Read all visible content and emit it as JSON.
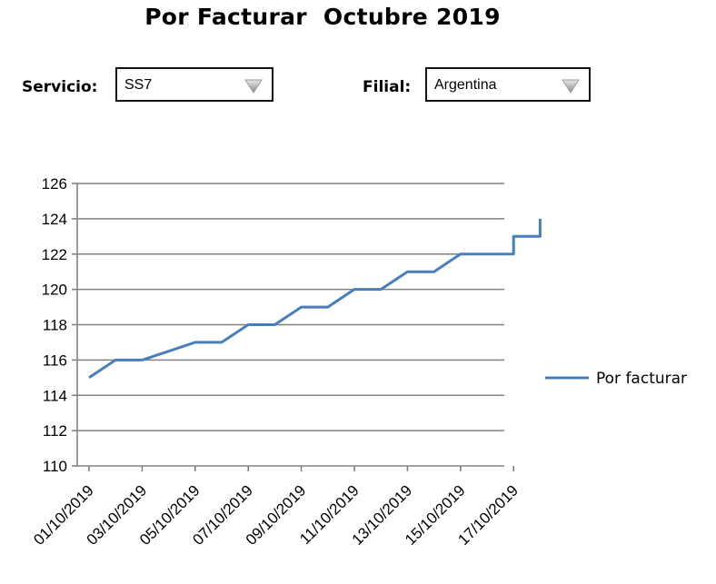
{
  "header": {
    "title": "Por Facturar  Octubre 2019"
  },
  "filters": {
    "servicio": {
      "label": "Servicio:",
      "value": "SS7"
    },
    "filial": {
      "label": "Filial:",
      "value": "Argentina"
    }
  },
  "colors": {
    "series": "#4a7ebb",
    "grid": "#808080",
    "axis": "#808080"
  },
  "chart_data": {
    "type": "line",
    "title": "",
    "xlabel": "",
    "ylabel": "",
    "ylim": [
      110,
      126
    ],
    "yticks": [
      "110",
      "112",
      "114",
      "116",
      "118",
      "120",
      "122",
      "124",
      "126"
    ],
    "xticks": [
      "01/10/2019",
      "03/10/2019",
      "05/10/2019",
      "07/10/2019",
      "09/10/2019",
      "11/10/2019",
      "13/10/2019",
      "15/10/2019",
      "17/10/2019"
    ],
    "x": [
      "01/10/2019",
      "02/10/2019",
      "03/10/2019",
      "04/10/2019",
      "05/10/2019",
      "06/10/2019",
      "07/10/2019",
      "08/10/2019",
      "09/10/2019",
      "10/10/2019",
      "11/10/2019",
      "12/10/2019",
      "13/10/2019",
      "14/10/2019",
      "15/10/2019",
      "16/10/2019",
      "17/10/2019",
      "18/10/2019"
    ],
    "series": [
      {
        "name": "Por facturar",
        "values": [
          115,
          116,
          116,
          116.5,
          117,
          117,
          118,
          118,
          119,
          119,
          120,
          120,
          121,
          121,
          122,
          122,
          123,
          124
        ]
      }
    ],
    "grid": true,
    "legend": "right"
  }
}
